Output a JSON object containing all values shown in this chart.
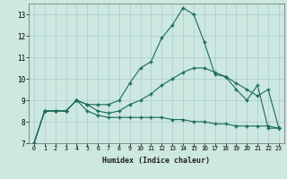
{
  "xlabel": "Humidex (Indice chaleur)",
  "background_color": "#cce8e0",
  "grid_color": "#aacccc",
  "line_color": "#1a6b5a",
  "xlim": [
    -0.5,
    23.5
  ],
  "ylim": [
    7,
    13.5
  ],
  "yticks": [
    7,
    8,
    9,
    10,
    11,
    12,
    13
  ],
  "xticks": [
    0,
    1,
    2,
    3,
    4,
    5,
    6,
    7,
    8,
    9,
    10,
    11,
    12,
    13,
    14,
    15,
    16,
    17,
    18,
    19,
    20,
    21,
    22,
    23
  ],
  "line1_x": [
    0,
    1,
    2,
    3,
    4,
    5,
    6,
    7,
    8,
    9,
    10,
    11,
    12,
    13,
    14,
    15,
    16,
    17,
    18,
    19,
    20,
    21,
    22,
    23
  ],
  "line1_y": [
    7.0,
    8.5,
    8.5,
    8.5,
    9.0,
    8.8,
    8.8,
    8.8,
    9.0,
    9.8,
    10.5,
    10.8,
    11.9,
    12.5,
    13.3,
    13.0,
    11.7,
    10.2,
    10.1,
    9.5,
    9.0,
    9.7,
    7.7,
    7.7
  ],
  "line2_x": [
    0,
    1,
    2,
    3,
    4,
    5,
    6,
    7,
    8,
    9,
    10,
    11,
    12,
    13,
    14,
    15,
    16,
    17,
    18,
    19,
    20,
    21,
    22,
    23
  ],
  "line2_y": [
    7.0,
    8.5,
    8.5,
    8.5,
    9.0,
    8.8,
    8.5,
    8.4,
    8.5,
    8.8,
    9.0,
    9.3,
    9.7,
    10.0,
    10.3,
    10.5,
    10.5,
    10.3,
    10.1,
    9.8,
    9.5,
    9.2,
    9.5,
    7.7
  ],
  "line3_x": [
    0,
    1,
    2,
    3,
    4,
    5,
    6,
    7,
    8,
    9,
    10,
    11,
    12,
    13,
    14,
    15,
    16,
    17,
    18,
    19,
    20,
    21,
    22,
    23
  ],
  "line3_y": [
    7.0,
    8.5,
    8.5,
    8.5,
    9.0,
    8.5,
    8.3,
    8.2,
    8.2,
    8.2,
    8.2,
    8.2,
    8.2,
    8.1,
    8.1,
    8.0,
    8.0,
    7.9,
    7.9,
    7.8,
    7.8,
    7.8,
    7.8,
    7.7
  ]
}
